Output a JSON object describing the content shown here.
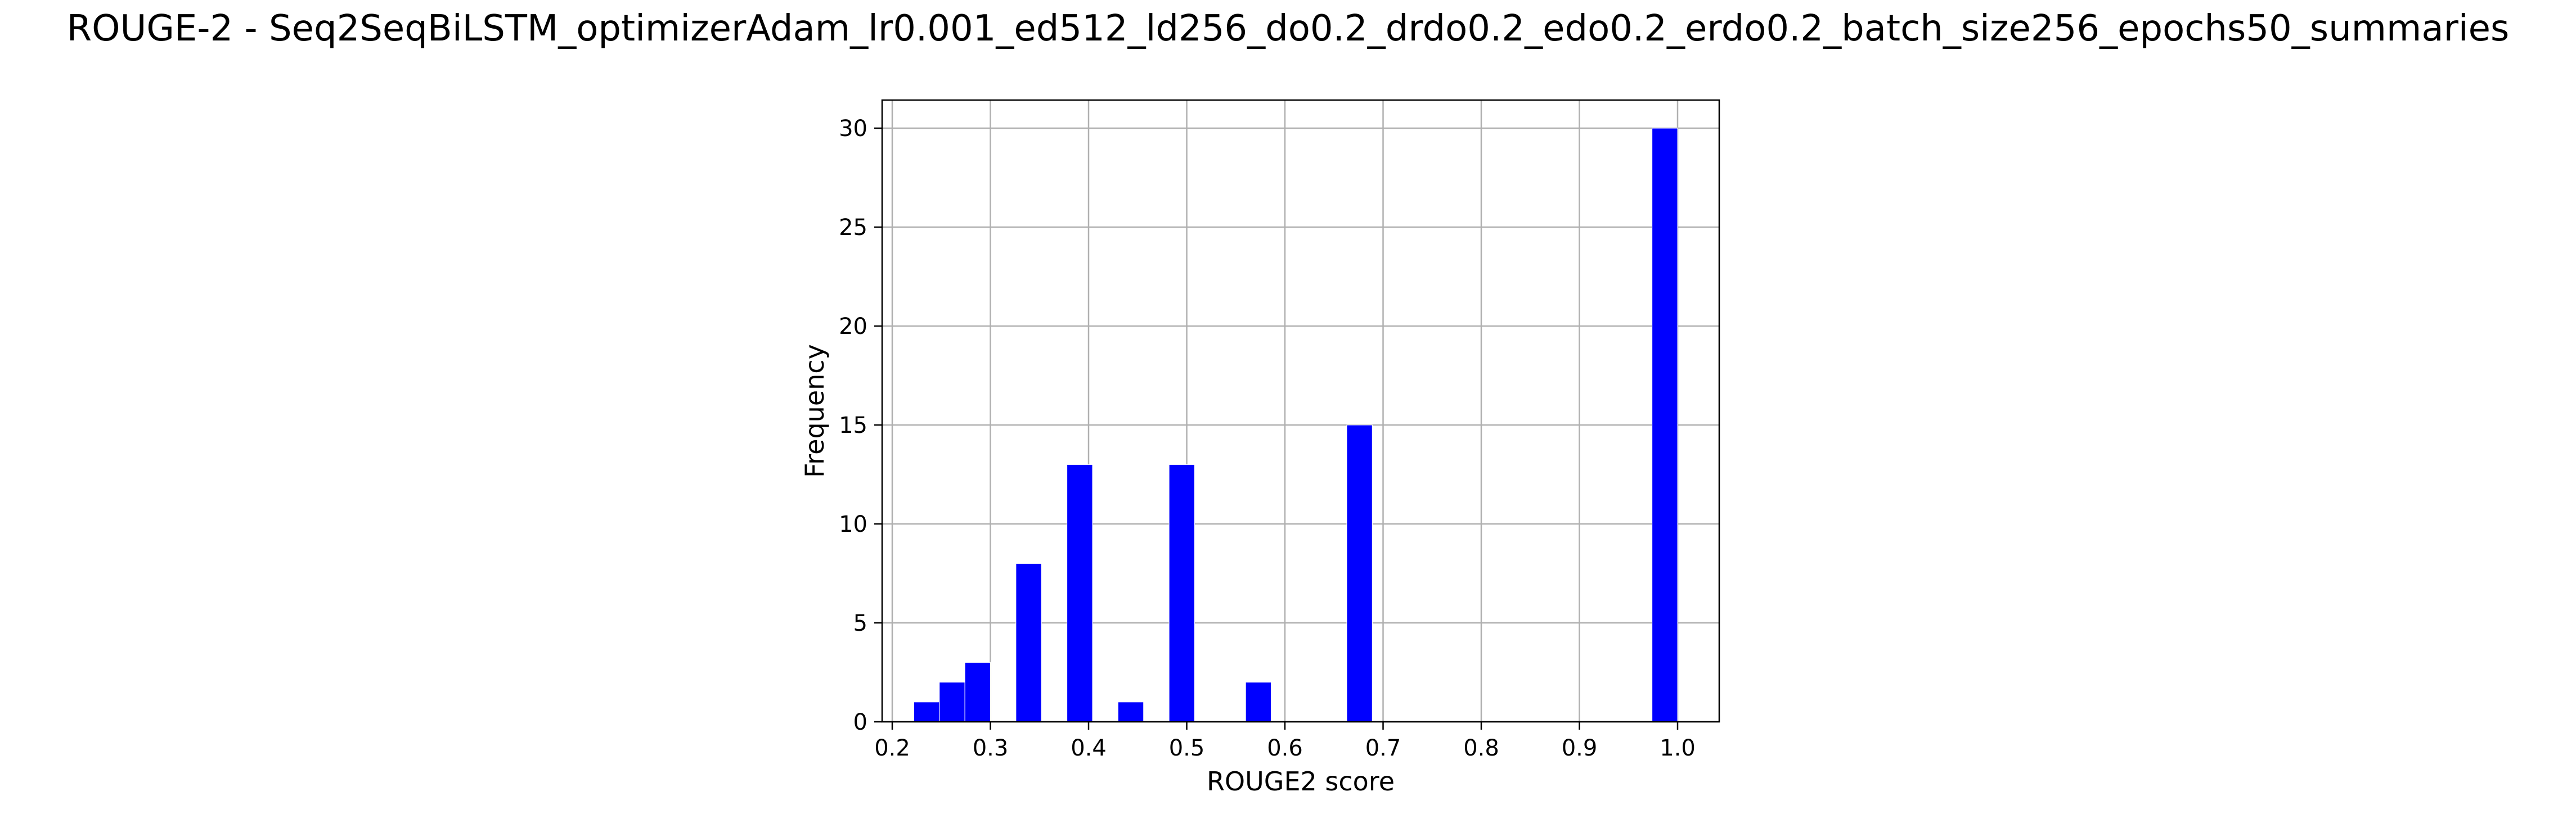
{
  "chart_data": {
    "type": "bar",
    "title": "ROUGE-2 - Seq2SeqBiLSTM_optimizerAdam_lr0.001_ed512_ld256_do0.2_drdo0.2_edo0.2_erdo0.2_batch_size256_epochs50_summaries",
    "xlabel": "ROUGE2 score",
    "ylabel": "Frequency",
    "xlim": [
      0.2,
      1.0
    ],
    "ylim": [
      0,
      31
    ],
    "x_ticks": [
      "0.2",
      "0.3",
      "0.4",
      "0.5",
      "0.6",
      "0.7",
      "0.8",
      "0.9",
      "1.0"
    ],
    "y_ticks": [
      "0",
      "5",
      "10",
      "15",
      "20",
      "25",
      "30"
    ],
    "grid": true,
    "bar_color": "#0000ff",
    "bars": [
      {
        "x0": 0.222,
        "x1": 0.248,
        "value": 1
      },
      {
        "x0": 0.248,
        "x1": 0.274,
        "value": 2
      },
      {
        "x0": 0.274,
        "x1": 0.3,
        "value": 3
      },
      {
        "x0": 0.326,
        "x1": 0.352,
        "value": 8
      },
      {
        "x0": 0.378,
        "x1": 0.404,
        "value": 13
      },
      {
        "x0": 0.43,
        "x1": 0.456,
        "value": 1
      },
      {
        "x0": 0.482,
        "x1": 0.508,
        "value": 13
      },
      {
        "x0": 0.56,
        "x1": 0.586,
        "value": 2
      },
      {
        "x0": 0.663,
        "x1": 0.689,
        "value": 15
      },
      {
        "x0": 0.974,
        "x1": 1.0,
        "value": 30
      }
    ]
  }
}
